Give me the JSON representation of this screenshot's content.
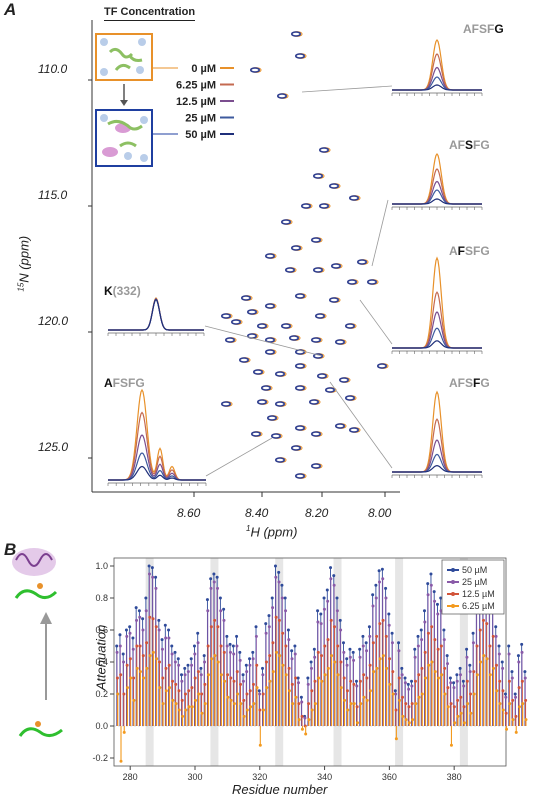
{
  "panels": {
    "a": "A",
    "b": "B"
  },
  "panelA": {
    "tf_title": "TF Concentration",
    "concentrations": [
      {
        "label": "0 µM",
        "color": "#e8912a"
      },
      {
        "label": "6.25 µM",
        "color": "#c46a50"
      },
      {
        "label": "12.5 µM",
        "color": "#7b4e8f"
      },
      {
        "label": "25 µM",
        "color": "#3d5a9e"
      },
      {
        "label": "50 µM",
        "color": "#1f2f7a"
      }
    ],
    "yaxis_label_sup": "15",
    "yaxis_label": "N (ppm)",
    "xaxis_label_sup": "1",
    "xaxis_label": "H (ppm)",
    "yticks": [
      "110.0",
      "115.0",
      "120.0",
      "125.0"
    ],
    "xticks": [
      "8.60",
      "8.40",
      "8.20",
      "8.00"
    ],
    "insets": [
      {
        "id": "afsfg-g",
        "parts": [
          {
            "t": "AFSF",
            "hl": false
          },
          {
            "t": "G",
            "hl": true
          }
        ],
        "heights": [
          1.0,
          0.72,
          0.45,
          0.26,
          0.1
        ]
      },
      {
        "id": "afsfg-s",
        "parts": [
          {
            "t": "AF",
            "hl": false
          },
          {
            "t": "S",
            "hl": true
          },
          {
            "t": "FG",
            "hl": false
          }
        ],
        "heights": [
          1.0,
          0.7,
          0.45,
          0.28,
          0.1
        ]
      },
      {
        "id": "afsfg-f2",
        "parts": [
          {
            "t": "A",
            "hl": false
          },
          {
            "t": "F",
            "hl": true
          },
          {
            "t": "SFG",
            "hl": false
          }
        ],
        "heights": [
          1.0,
          0.62,
          0.4,
          0.22,
          0.08
        ]
      },
      {
        "id": "afsfg-f4",
        "parts": [
          {
            "t": "AFS",
            "hl": false
          },
          {
            "t": "F",
            "hl": true
          },
          {
            "t": "G",
            "hl": false
          }
        ],
        "heights": [
          1.0,
          0.66,
          0.4,
          0.22,
          0.08
        ]
      },
      {
        "id": "k332",
        "parts": [
          {
            "t": "K",
            "hl": true
          },
          {
            "t": "(332)",
            "hl": false
          }
        ],
        "heights": [
          1.0,
          0.98,
          0.97,
          0.96,
          0.95
        ]
      },
      {
        "id": "afsfg-a",
        "parts": [
          {
            "t": "A",
            "hl": true
          },
          {
            "t": "FSFG",
            "hl": false
          }
        ],
        "heights": [
          1.0,
          0.75,
          0.5,
          0.3,
          0.15
        ]
      }
    ]
  },
  "chart_data": {
    "type": "bar",
    "xlabel": "Residue number",
    "ylabel": "Attenuation",
    "xlim": [
      275,
      396
    ],
    "ylim": [
      -0.25,
      1.05
    ],
    "xticks": [
      280,
      300,
      320,
      340,
      360,
      380
    ],
    "yticks": [
      -0.2,
      0.0,
      0.2,
      0.4,
      0.6,
      0.8,
      1.0
    ],
    "highlight_residues": [
      286,
      306,
      326,
      344,
      363,
      383
    ],
    "x_start": 276,
    "series": [
      {
        "name": "50 µM",
        "color": "#2e4a9a",
        "values": [
          0.5,
          0.57,
          0.45,
          0.6,
          0.62,
          0.55,
          0.74,
          0.72,
          0.67,
          0.8,
          1.0,
          0.99,
          0.93,
          0.66,
          0.54,
          0.63,
          0.6,
          0.5,
          0.46,
          0.42,
          0.32,
          0.36,
          0.38,
          0.42,
          0.5,
          0.58,
          0.36,
          0.44,
          0.79,
          0.92,
          0.95,
          0.93,
          0.8,
          0.73,
          0.56,
          0.51,
          0.5,
          0.56,
          0.46,
          0.32,
          0.38,
          0.42,
          0.46,
          0.62,
          0.22,
          0.36,
          0.64,
          0.69,
          0.8,
          1.0,
          0.96,
          0.88,
          0.8,
          0.6,
          0.47,
          0.5,
          0.3,
          0.18,
          0.06,
          0.3,
          0.4,
          0.48,
          0.72,
          0.7,
          0.8,
          0.85,
          0.99,
          0.94,
          0.8,
          0.66,
          0.52,
          0.42,
          0.48,
          0.46,
          0.28,
          0.48,
          0.56,
          0.52,
          0.62,
          0.82,
          0.88,
          0.97,
          0.98,
          0.86,
          0.7,
          0.58,
          0.22,
          0.52,
          0.36,
          0.3,
          0.26,
          0.28,
          0.48,
          0.56,
          0.6,
          0.72,
          0.89,
          0.95,
          0.84,
          0.76,
          0.8,
          0.6,
          0.44,
          0.3,
          0.27,
          0.32,
          0.36,
          0.28,
          0.48,
          0.38,
          0.58,
          0.8,
          0.91,
          0.98,
          0.96,
          0.78,
          0.88,
          0.62,
          0.5,
          0.4,
          0.2,
          0.5,
          0.34,
          0.2,
          0.44,
          0.51,
          0.34
        ]
      },
      {
        "name": "25 µM",
        "color": "#8a5aa8",
        "values": [
          0.46,
          0.5,
          0.4,
          0.56,
          0.58,
          0.48,
          0.66,
          0.68,
          0.6,
          0.72,
          0.95,
          0.93,
          0.86,
          0.6,
          0.48,
          0.55,
          0.55,
          0.45,
          0.4,
          0.38,
          0.28,
          0.32,
          0.34,
          0.38,
          0.45,
          0.52,
          0.32,
          0.4,
          0.72,
          0.86,
          0.9,
          0.86,
          0.72,
          0.66,
          0.5,
          0.46,
          0.45,
          0.5,
          0.41,
          0.28,
          0.34,
          0.38,
          0.42,
          0.56,
          0.2,
          0.32,
          0.58,
          0.62,
          0.74,
          0.93,
          0.9,
          0.8,
          0.72,
          0.54,
          0.42,
          0.45,
          0.27,
          0.15,
          0.05,
          0.26,
          0.36,
          0.43,
          0.65,
          0.64,
          0.73,
          0.78,
          0.92,
          0.88,
          0.72,
          0.6,
          0.46,
          0.38,
          0.43,
          0.41,
          0.25,
          0.43,
          0.5,
          0.47,
          0.56,
          0.75,
          0.8,
          0.9,
          0.92,
          0.8,
          0.63,
          0.52,
          0.2,
          0.47,
          0.32,
          0.27,
          0.23,
          0.25,
          0.43,
          0.5,
          0.54,
          0.65,
          0.82,
          0.88,
          0.78,
          0.7,
          0.72,
          0.54,
          0.39,
          0.27,
          0.24,
          0.28,
          0.32,
          0.25,
          0.43,
          0.34,
          0.52,
          0.73,
          0.84,
          0.91,
          0.9,
          0.72,
          0.8,
          0.56,
          0.45,
          0.36,
          0.18,
          0.45,
          0.3,
          0.18,
          0.4,
          0.46,
          0.3
        ]
      },
      {
        "name": "12.5 µM",
        "color": "#d2543a",
        "values": [
          0.3,
          0.32,
          0.2,
          0.38,
          0.42,
          0.3,
          0.5,
          0.5,
          0.44,
          0.52,
          0.68,
          0.67,
          0.62,
          0.4,
          0.3,
          0.36,
          0.38,
          0.28,
          0.26,
          0.22,
          0.16,
          0.2,
          0.22,
          0.24,
          0.3,
          0.34,
          0.2,
          0.26,
          0.5,
          0.62,
          0.66,
          0.62,
          0.5,
          0.46,
          0.32,
          0.3,
          0.28,
          0.34,
          0.26,
          0.16,
          0.2,
          0.22,
          0.26,
          0.38,
          0.1,
          0.2,
          0.4,
          0.44,
          0.52,
          0.68,
          0.66,
          0.58,
          0.5,
          0.36,
          0.26,
          0.3,
          0.14,
          0.06,
          0.0,
          0.14,
          0.22,
          0.28,
          0.46,
          0.44,
          0.5,
          0.54,
          0.66,
          0.62,
          0.5,
          0.4,
          0.3,
          0.22,
          0.28,
          0.26,
          0.12,
          0.28,
          0.32,
          0.3,
          0.38,
          0.52,
          0.56,
          0.64,
          0.66,
          0.56,
          0.42,
          0.34,
          0.1,
          0.3,
          0.18,
          0.14,
          0.12,
          0.14,
          0.28,
          0.32,
          0.36,
          0.46,
          0.58,
          0.62,
          0.54,
          0.48,
          0.5,
          0.36,
          0.24,
          0.14,
          0.12,
          0.16,
          0.18,
          0.12,
          0.28,
          0.2,
          0.34,
          0.5,
          0.6,
          0.66,
          0.64,
          0.5,
          0.56,
          0.38,
          0.28,
          0.22,
          0.08,
          0.28,
          0.16,
          0.06,
          0.24,
          0.28,
          0.16
        ]
      },
      {
        "name": "6.25 µM",
        "color": "#f39a1e",
        "values": [
          0.2,
          -0.22,
          -0.04,
          0.24,
          0.3,
          0.16,
          0.36,
          0.34,
          0.3,
          0.36,
          0.44,
          0.46,
          0.42,
          0.24,
          0.14,
          0.22,
          0.24,
          0.16,
          0.14,
          0.1,
          0.06,
          0.1,
          0.12,
          0.12,
          0.16,
          0.2,
          0.08,
          0.14,
          0.32,
          0.42,
          0.44,
          0.4,
          0.32,
          0.28,
          0.18,
          0.16,
          0.14,
          0.2,
          0.14,
          0.06,
          0.1,
          0.12,
          0.14,
          0.24,
          -0.12,
          0.1,
          0.24,
          0.28,
          0.34,
          0.46,
          0.44,
          0.38,
          0.32,
          0.22,
          0.14,
          0.18,
          0.04,
          -0.02,
          -0.05,
          0.04,
          0.1,
          0.14,
          0.3,
          0.28,
          0.32,
          0.36,
          0.44,
          0.4,
          0.32,
          0.24,
          0.16,
          0.1,
          0.14,
          0.14,
          0.02,
          0.14,
          0.18,
          0.16,
          0.22,
          0.34,
          0.36,
          0.42,
          0.44,
          0.36,
          0.26,
          0.2,
          -0.08,
          0.16,
          0.06,
          0.04,
          0.02,
          0.04,
          0.14,
          0.18,
          0.2,
          0.3,
          0.38,
          0.4,
          0.34,
          0.3,
          0.32,
          0.2,
          0.12,
          -0.12,
          0.02,
          0.06,
          0.08,
          0.02,
          0.14,
          0.08,
          0.2,
          0.32,
          0.4,
          0.44,
          0.42,
          0.32,
          0.36,
          0.22,
          0.14,
          0.1,
          -0.02,
          0.14,
          0.04,
          -0.04,
          0.12,
          0.14,
          0.04
        ]
      }
    ]
  }
}
